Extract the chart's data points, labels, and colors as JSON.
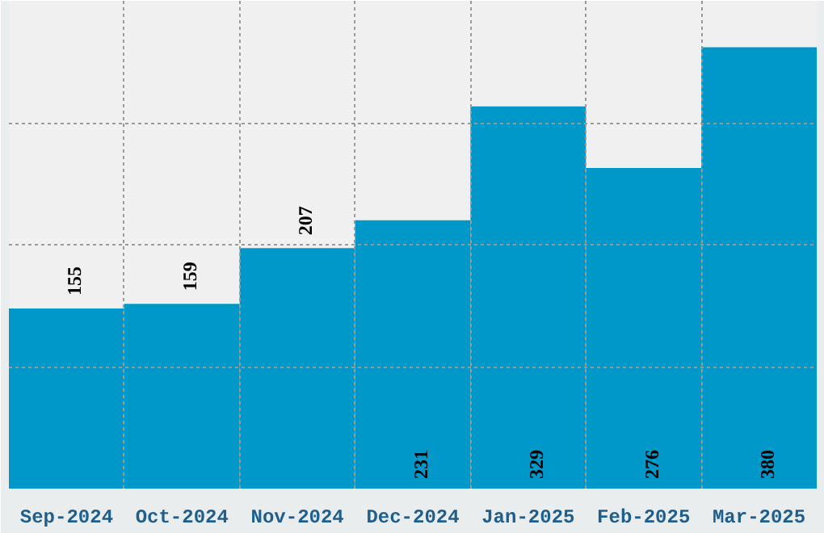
{
  "chart_data": {
    "type": "bar",
    "categories": [
      "Sep-2024",
      "Oct-2024",
      "Nov-2024",
      "Dec-2024",
      "Jan-2025",
      "Feb-2025",
      "Mar-2025"
    ],
    "values": [
      155,
      159,
      207,
      231,
      329,
      276,
      380
    ],
    "color": "#0098c8",
    "ylim": [
      0,
      420
    ],
    "yticks": [
      {
        "value": 0,
        "label": null
      },
      {
        "value": 105,
        "label": null
      },
      {
        "value": 210,
        "label": null
      },
      {
        "value": 315,
        "label": null
      },
      {
        "value": 420,
        "label": null
      }
    ],
    "grid": true,
    "data_labels": true
  }
}
